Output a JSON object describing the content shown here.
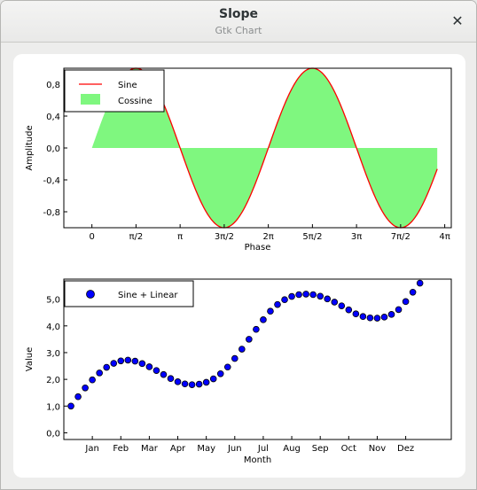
{
  "window": {
    "title": "Slope",
    "subtitle": "Gtk Chart",
    "close_glyph": "✕"
  },
  "chart_data": [
    {
      "type": "line",
      "xlabel": "Phase",
      "ylabel": "Amplitude",
      "xlim": [
        -1.0,
        12.8
      ],
      "ylim": [
        -1.0,
        1.0
      ],
      "x_ticks": [
        0,
        1.5708,
        3.1416,
        4.7124,
        6.2832,
        7.854,
        9.4248,
        10.9956,
        12.5664
      ],
      "x_tick_labels": [
        "0",
        "π/2",
        "π",
        "3π/2",
        "2π",
        "5π/2",
        "3π",
        "7π/2",
        "4π"
      ],
      "y_ticks": [
        -0.8,
        -0.4,
        0.0,
        0.4,
        0.8
      ],
      "y_tick_labels": [
        "-0,8",
        "-0,4",
        "0,0",
        "0,4",
        "0,8"
      ],
      "legend_position": "top-left",
      "series": [
        {
          "name": "Sine",
          "function": "sin(x)",
          "x_range": [
            1.0,
            12.3
          ],
          "color": "#ff0000",
          "style": "line"
        },
        {
          "name": "Cossine",
          "function": "sin(x)",
          "x_range": [
            0,
            12.3
          ],
          "color": "#7ff77f",
          "style": "filled-area"
        }
      ]
    },
    {
      "type": "scatter",
      "xlabel": "Month",
      "ylabel": "Value",
      "xlim": [
        0,
        13.6
      ],
      "ylim": [
        -0.25,
        5.75
      ],
      "x_ticks": [
        1,
        2,
        3,
        4,
        5,
        6,
        7,
        8,
        9,
        10,
        11,
        12
      ],
      "x_tick_labels": [
        "Jan",
        "Feb",
        "Mar",
        "Apr",
        "May",
        "Jun",
        "Jul",
        "Aug",
        "Sep",
        "Oct",
        "Nov",
        "Dez"
      ],
      "y_ticks": [
        0,
        1,
        2,
        3,
        4,
        5
      ],
      "y_tick_labels": [
        "0,0",
        "1,0",
        "2,0",
        "3,0",
        "4,0",
        "5,0"
      ],
      "legend_position": "top-left",
      "series": [
        {
          "name": "Sine + Linear",
          "color": "#0000ff",
          "x": [
            0.25,
            0.5,
            0.75,
            1.0,
            1.25,
            1.5,
            1.75,
            2.0,
            2.25,
            2.5,
            2.75,
            3.0,
            3.25,
            3.5,
            3.75,
            4.0,
            4.25,
            4.5,
            4.75,
            5.0,
            5.25,
            5.5,
            5.75,
            6.0,
            6.25,
            6.5,
            6.75,
            7.0,
            7.25,
            7.5,
            7.75,
            8.0,
            8.25,
            8.5,
            8.75,
            9.0,
            9.25,
            9.5,
            9.75,
            10.0,
            10.25,
            10.5,
            10.75,
            11.0,
            11.25,
            11.5,
            11.75,
            12.0,
            12.25,
            12.5
          ],
          "y": [
            1.0,
            1.35,
            1.68,
            1.98,
            2.24,
            2.45,
            2.6,
            2.69,
            2.72,
            2.68,
            2.59,
            2.47,
            2.33,
            2.18,
            2.03,
            1.91,
            1.83,
            1.8,
            1.82,
            1.89,
            2.02,
            2.21,
            2.46,
            2.78,
            3.13,
            3.5,
            3.87,
            4.23,
            4.55,
            4.8,
            4.98,
            5.1,
            5.17,
            5.19,
            5.17,
            5.11,
            5.01,
            4.89,
            4.75,
            4.6,
            4.45,
            4.35,
            4.3,
            4.29,
            4.33,
            4.43,
            4.61,
            4.91,
            5.26,
            5.6
          ]
        }
      ]
    }
  ]
}
